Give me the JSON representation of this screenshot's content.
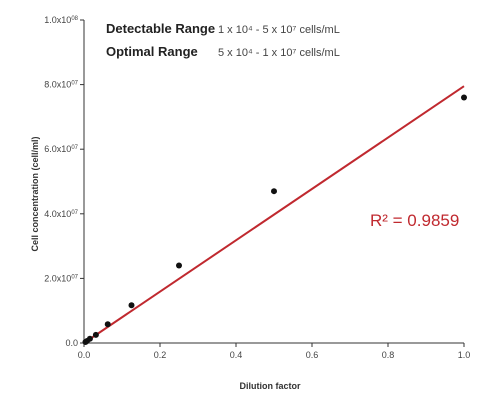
{
  "chart_data": {
    "type": "scatter",
    "xlabel": "Dilution factor",
    "ylabel": "Cell concentration (cell/ml)",
    "xlim": [
      0,
      1.0
    ],
    "ylim": [
      0,
      100000000
    ],
    "x_ticks": [
      {
        "value": 0.0,
        "label": "0.0"
      },
      {
        "value": 0.2,
        "label": "0.2"
      },
      {
        "value": 0.4,
        "label": "0.4"
      },
      {
        "value": 0.6,
        "label": "0.6"
      },
      {
        "value": 0.8,
        "label": "0.8"
      },
      {
        "value": 1.0,
        "label": "1.0"
      }
    ],
    "y_ticks": [
      {
        "value": 0,
        "base": "0.0",
        "exp": ""
      },
      {
        "value": 20000000,
        "base": "2.0x10",
        "exp": "07"
      },
      {
        "value": 40000000,
        "base": "4.0x10",
        "exp": "07"
      },
      {
        "value": 60000000,
        "base": "6.0x10",
        "exp": "07"
      },
      {
        "value": 80000000,
        "base": "8.0x10",
        "exp": "07"
      },
      {
        "value": 100000000,
        "base": "1.0x10",
        "exp": "08"
      }
    ],
    "series": [
      {
        "points": [
          {
            "x": 0.0039,
            "y": 300000
          },
          {
            "x": 0.0078,
            "y": 600000
          },
          {
            "x": 0.0156,
            "y": 1300000
          },
          {
            "x": 0.0313,
            "y": 2500000
          },
          {
            "x": 0.0625,
            "y": 5800000
          },
          {
            "x": 0.125,
            "y": 11700000
          },
          {
            "x": 0.25,
            "y": 24000000
          },
          {
            "x": 0.5,
            "y": 47000000
          },
          {
            "x": 1.0,
            "y": 76000000
          }
        ]
      }
    ],
    "trendline": {
      "x_start": 0.0,
      "y_start": 0,
      "x_end": 1.0,
      "y_end": 79500000,
      "color": "#c0292f"
    },
    "legend": {
      "detectable_label": "Detectable Range",
      "detectable_value": "1 x 10⁴ - 5 x 10⁷ cells/mL",
      "optimal_label": "Optimal Range",
      "optimal_value": "5 x 10⁴ - 1 x 10⁷ cells/mL"
    },
    "annotation": {
      "r2_text": "R² = 0.9859",
      "color": "#c0292f"
    },
    "grid": false,
    "marker_color": "#111111",
    "axis_color": "#333333"
  }
}
